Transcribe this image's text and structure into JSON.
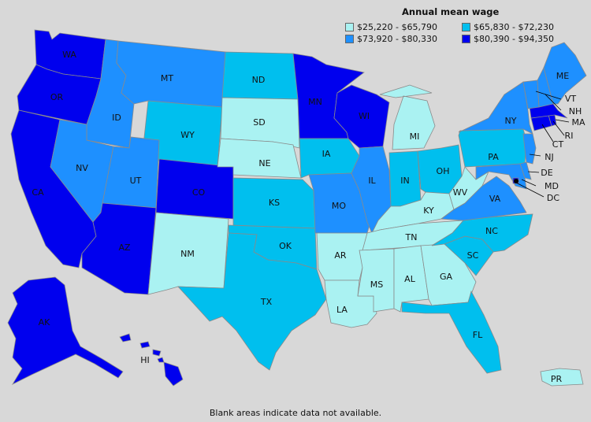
{
  "legend": {
    "title": "Annual mean wage",
    "items": [
      {
        "label": "$25,220 - $65,790",
        "color": "#aaf2f2"
      },
      {
        "label": "$65,830 - $72,230",
        "color": "#00bfee"
      },
      {
        "label": "$73,920 - $80,330",
        "color": "#1e90ff"
      },
      {
        "label": "$80,390 - $94,350",
        "color": "#0000ee"
      }
    ]
  },
  "footnote": "Blank areas indicate data not available.",
  "states": {
    "WA": 4,
    "OR": 4,
    "CA": 4,
    "ID": 3,
    "NV": 3,
    "MT": 3,
    "WY": 2,
    "UT": 3,
    "AZ": 4,
    "CO": 4,
    "NM": 1,
    "ND": 2,
    "SD": 1,
    "NE": 1,
    "KS": 2,
    "OK": 2,
    "TX": 2,
    "MN": 4,
    "IA": 2,
    "MO": 3,
    "AR": 1,
    "LA": 1,
    "WI": 4,
    "IL": 3,
    "MI": 1,
    "IN": 2,
    "OH": 2,
    "KY": 1,
    "TN": 1,
    "MS": 1,
    "AL": 1,
    "GA": 1,
    "FL": 2,
    "SC": 2,
    "NC": 2,
    "VA": 3,
    "WV": 1,
    "PA": 2,
    "NY": 3,
    "ME": 3,
    "VT": 3,
    "NH": 3,
    "MA": 4,
    "RI": 4,
    "CT": 4,
    "NJ": 3,
    "DE": 3,
    "MD": 3,
    "DC": 4,
    "AK": 4,
    "HI": 4,
    "PR": 1
  }
}
